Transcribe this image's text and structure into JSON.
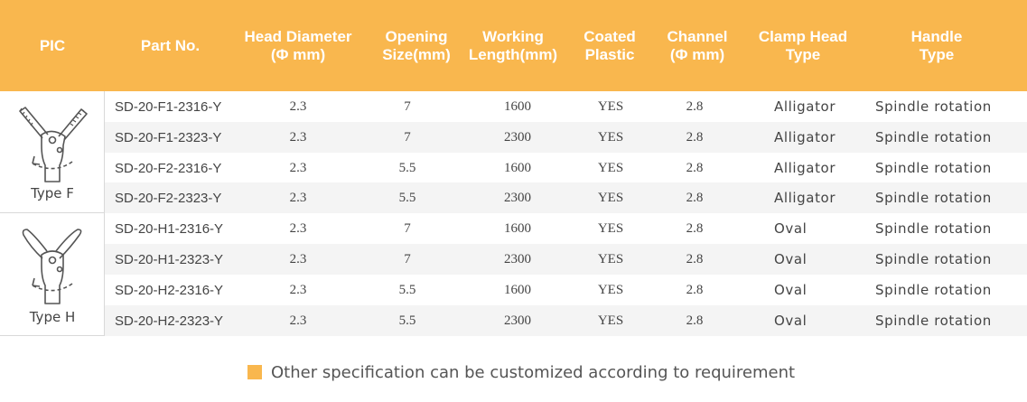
{
  "header": {
    "pic": "PIC",
    "part_no": "Part No.",
    "head_diameter": "Head Diameter\n(Φ mm)",
    "opening_size": "Opening\nSize(mm)",
    "working_length": "Working\nLength(mm)",
    "coated_plastic": "Coated\nPlastic",
    "channel": "Channel\n(Φ mm)",
    "clamp_head_type": "Clamp Head\nType",
    "handle_type": "Handle\nType"
  },
  "groups": [
    {
      "label": "Type F",
      "icon": "alligator-forceps-icon"
    },
    {
      "label": "Type H",
      "icon": "oval-forceps-icon"
    }
  ],
  "rows": [
    {
      "part": "SD-20-F1-2316-Y",
      "diameter": "2.3",
      "opening": "7",
      "length": "1600",
      "coated": "YES",
      "channel": "2.8",
      "clamp": "Alligator",
      "handle": "Spindle rotation"
    },
    {
      "part": "SD-20-F1-2323-Y",
      "diameter": "2.3",
      "opening": "7",
      "length": "2300",
      "coated": "YES",
      "channel": "2.8",
      "clamp": "Alligator",
      "handle": "Spindle rotation"
    },
    {
      "part": "SD-20-F2-2316-Y",
      "diameter": "2.3",
      "opening": "5.5",
      "length": "1600",
      "coated": "YES",
      "channel": "2.8",
      "clamp": "Alligator",
      "handle": "Spindle rotation"
    },
    {
      "part": "SD-20-F2-2323-Y",
      "diameter": "2.3",
      "opening": "5.5",
      "length": "2300",
      "coated": "YES",
      "channel": "2.8",
      "clamp": "Alligator",
      "handle": "Spindle rotation"
    },
    {
      "part": "SD-20-H1-2316-Y",
      "diameter": "2.3",
      "opening": "7",
      "length": "1600",
      "coated": "YES",
      "channel": "2.8",
      "clamp": "Oval",
      "handle": "Spindle rotation"
    },
    {
      "part": "SD-20-H1-2323-Y",
      "diameter": "2.3",
      "opening": "7",
      "length": "2300",
      "coated": "YES",
      "channel": "2.8",
      "clamp": "Oval",
      "handle": "Spindle rotation"
    },
    {
      "part": "SD-20-H2-2316-Y",
      "diameter": "2.3",
      "opening": "5.5",
      "length": "1600",
      "coated": "YES",
      "channel": "2.8",
      "clamp": "Oval",
      "handle": "Spindle rotation"
    },
    {
      "part": "SD-20-H2-2323-Y",
      "diameter": "2.3",
      "opening": "5.5",
      "length": "2300",
      "coated": "YES",
      "channel": "2.8",
      "clamp": "Oval",
      "handle": "Spindle rotation"
    }
  ],
  "note": "Other specification can be customized according to requirement",
  "colors": {
    "accent": "#f9b74e",
    "stripe": "#f4f4f4",
    "text": "#444444"
  }
}
